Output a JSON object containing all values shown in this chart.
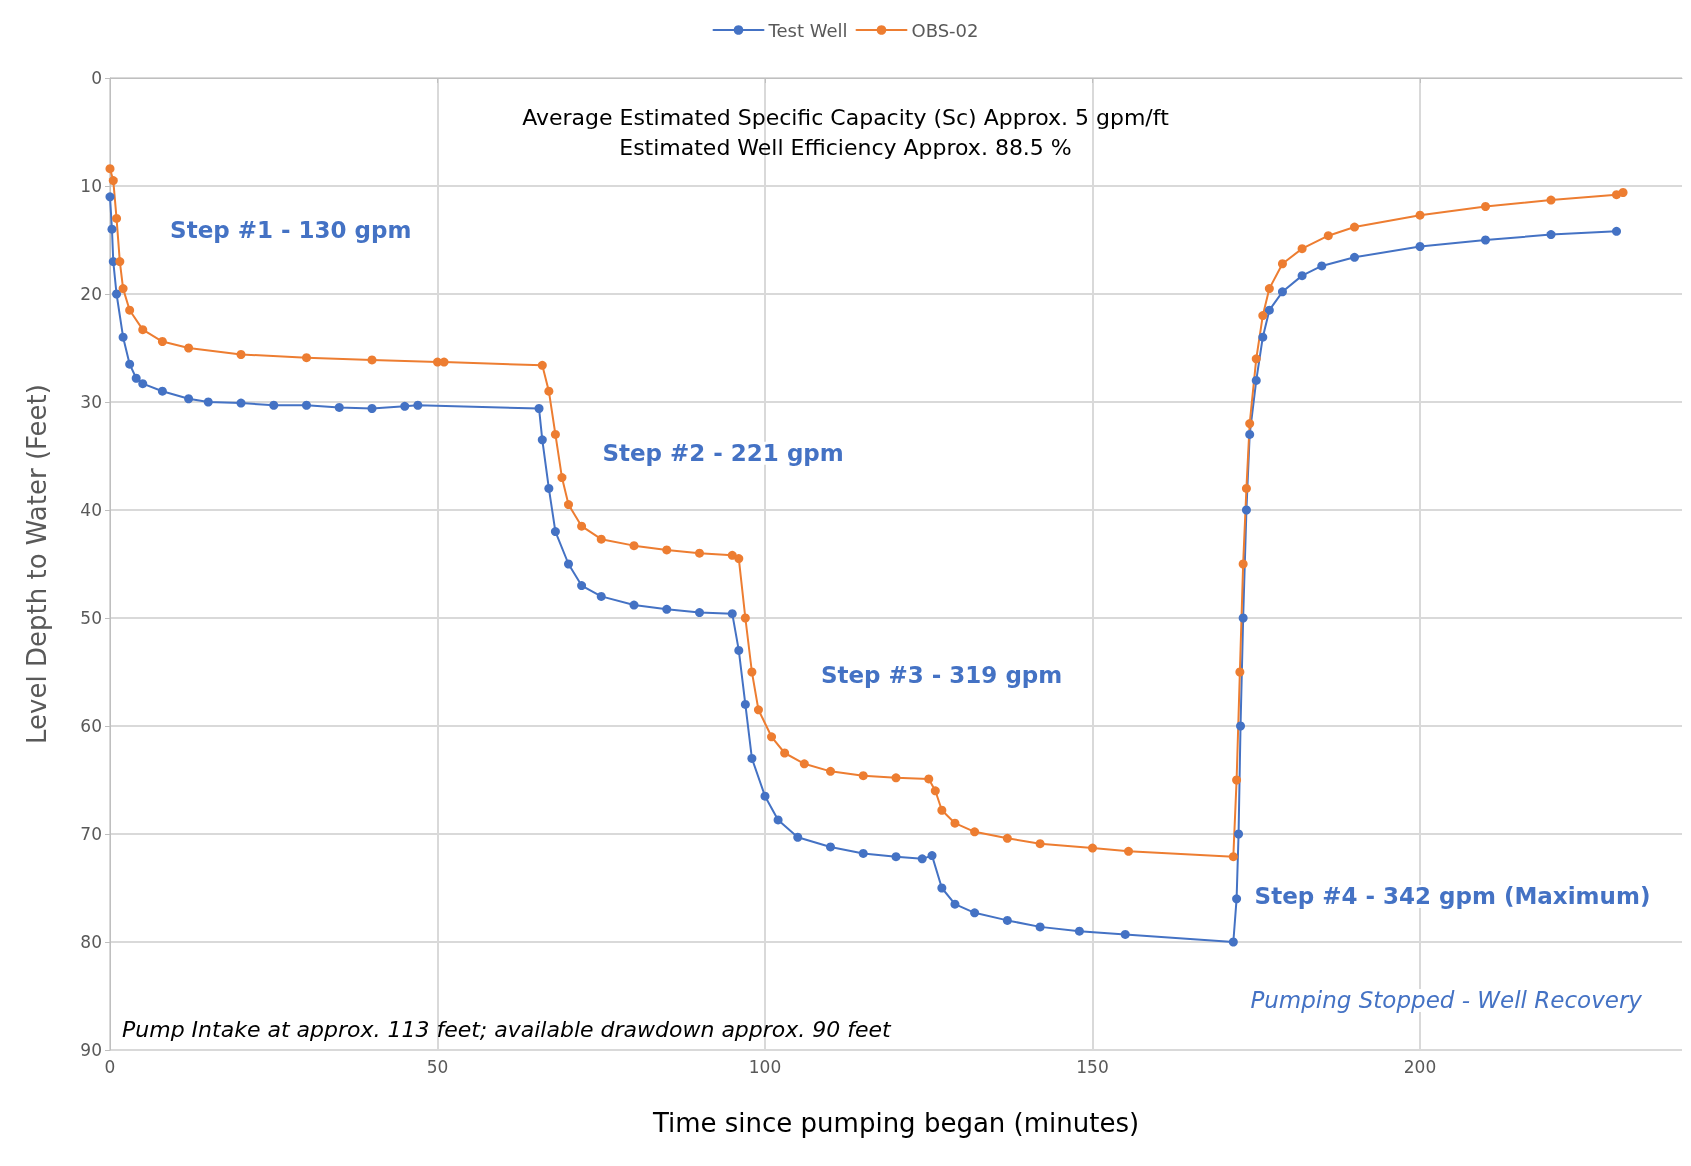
{
  "chart_data": {
    "type": "line",
    "title": "Average Estimated Specific Capacity (Sc) Approx. 5 gpm/ft",
    "subtitle": "Estimated Well Efficiency Approx. 88.5 %",
    "xlabel": "Time since pumping began (minutes)",
    "ylabel": "Level Depth to Water (Feet)",
    "xlim": [
      0,
      240
    ],
    "xticks": [
      0,
      50,
      100,
      150,
      200
    ],
    "ylim": [
      90,
      0
    ],
    "yticks": [
      0,
      10,
      20,
      30,
      40,
      50,
      60,
      70,
      80,
      90
    ],
    "grid": true,
    "legend": "top",
    "marker": "circle",
    "line_style": "solid",
    "series": [
      {
        "name": "Test Well",
        "color": "#4472c4",
        "x": [
          0,
          0.3,
          0.5,
          1,
          2,
          3,
          4,
          5,
          8,
          12,
          15,
          20,
          25,
          30,
          35,
          40,
          45,
          47,
          65.5,
          66,
          67,
          68,
          70,
          72,
          75,
          80,
          85,
          90,
          95,
          96,
          97,
          98,
          100,
          102,
          105,
          110,
          115,
          120,
          124,
          125.5,
          127,
          129,
          132,
          137,
          142,
          148,
          155,
          171.5,
          172,
          172.3,
          172.6,
          173,
          173.5,
          174,
          175,
          176,
          177,
          179,
          182,
          185,
          190,
          200,
          210,
          220,
          230
        ],
        "values": [
          11,
          14,
          17,
          20,
          24,
          26.5,
          27.8,
          28.3,
          29,
          29.7,
          30,
          30.1,
          30.3,
          30.3,
          30.5,
          30.6,
          30.4,
          30.3,
          30.6,
          33.5,
          38,
          42,
          45,
          47,
          48,
          48.8,
          49.2,
          49.5,
          49.6,
          53,
          58,
          63,
          66.5,
          68.7,
          70.3,
          71.2,
          71.8,
          72.1,
          72.3,
          72,
          75,
          76.5,
          77.3,
          78,
          78.6,
          79,
          79.3,
          80,
          76,
          70,
          60,
          50,
          40,
          33,
          28,
          24,
          21.5,
          19.8,
          18.3,
          17.4,
          16.6,
          15.6,
          15,
          14.5,
          14.2
        ]
      },
      {
        "name": "OBS-02",
        "color": "#ed7d31",
        "x": [
          0,
          0.5,
          1,
          1.5,
          2,
          3,
          5,
          8,
          12,
          20,
          30,
          40,
          50,
          51,
          66,
          67,
          68,
          69,
          70,
          72,
          75,
          80,
          85,
          90,
          95,
          96,
          97,
          98,
          99,
          101,
          103,
          106,
          110,
          115,
          120,
          125,
          126,
          127,
          129,
          132,
          137,
          142,
          150,
          155.5,
          171.5,
          172,
          172.5,
          173,
          173.5,
          174,
          175,
          176,
          177,
          179,
          182,
          186,
          190,
          200,
          210,
          220,
          230,
          231
        ],
        "values": [
          8.4,
          9.5,
          13,
          17,
          19.5,
          21.5,
          23.3,
          24.4,
          25,
          25.6,
          25.9,
          26.1,
          26.3,
          26.3,
          26.6,
          29,
          33,
          37,
          39.5,
          41.5,
          42.7,
          43.3,
          43.7,
          44,
          44.2,
          44.5,
          50,
          55,
          58.5,
          61,
          62.5,
          63.5,
          64.2,
          64.6,
          64.8,
          64.9,
          66,
          67.8,
          69,
          69.8,
          70.4,
          70.9,
          71.3,
          71.6,
          72.1,
          65,
          55,
          45,
          38,
          32,
          26,
          22,
          19.5,
          17.2,
          15.8,
          14.6,
          13.8,
          12.7,
          11.9,
          11.3,
          10.8,
          10.6
        ]
      }
    ],
    "annotations": [
      "Step #1 - 130 gpm",
      "Step #2 - 221 gpm",
      "Step #3 - 319 gpm",
      "Step #4 - 342 gpm (Maximum)",
      "Pumping Stopped - Well Recovery",
      "Pump Intake at approx. 113 feet; available drawdown approx. 90 feet"
    ]
  }
}
